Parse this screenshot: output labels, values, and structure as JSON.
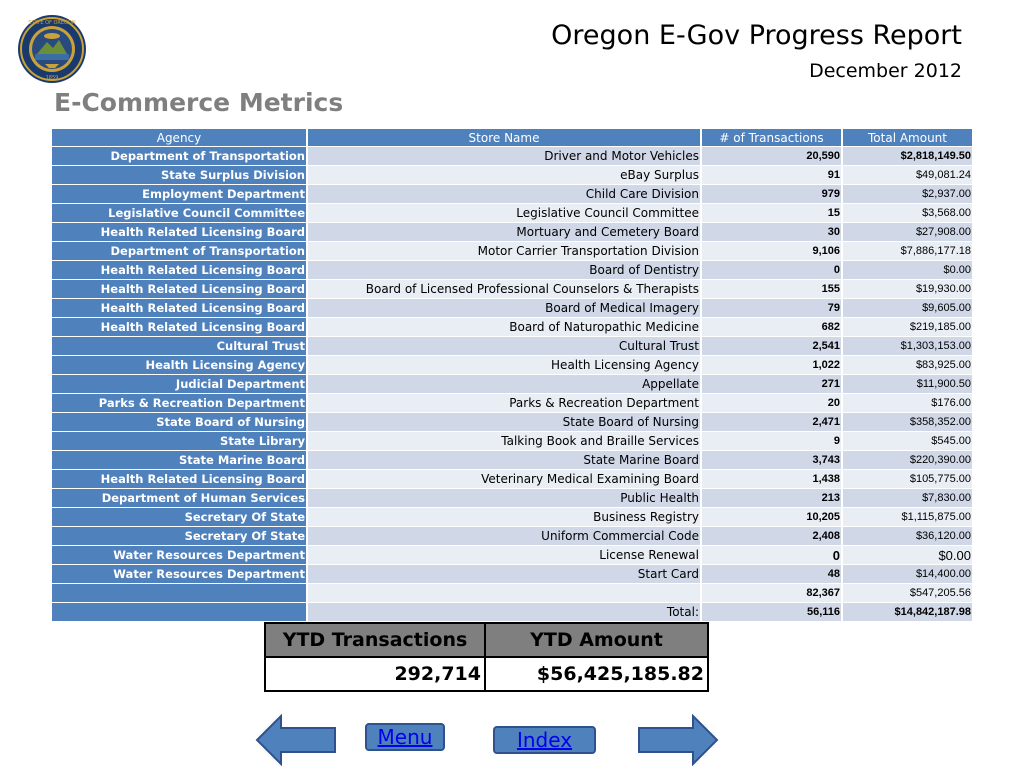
{
  "header": {
    "title": "Oregon E-Gov Progress Report",
    "subtitle": "December 2012",
    "section_title": "E-Commerce Metrics",
    "seal_text": "STATE OF OREGON 1859"
  },
  "table": {
    "columns": [
      "Agency",
      "Store Name",
      "# of Transactions",
      "Total Amount"
    ],
    "rows": [
      {
        "agency": "Department of Transportation",
        "store": "Driver and Motor Vehicles",
        "transactions": "20,590",
        "amount": "$2,818,149.50"
      },
      {
        "agency": "State Surplus Division",
        "store": "eBay Surplus",
        "transactions": "91",
        "amount": "$49,081.24"
      },
      {
        "agency": "Employment Department",
        "store": "Child Care Division",
        "transactions": "979",
        "amount": "$2,937.00"
      },
      {
        "agency": "Legislative Council Committee",
        "store": "Legislative Council Committee",
        "transactions": "15",
        "amount": "$3,568.00"
      },
      {
        "agency": "Health Related Licensing Board",
        "store": "Mortuary and Cemetery Board",
        "transactions": "30",
        "amount": "$27,908.00"
      },
      {
        "agency": "Department of Transportation",
        "store": "Motor Carrier Transportation Division",
        "transactions": "9,106",
        "amount": "$7,886,177.18"
      },
      {
        "agency": "Health Related Licensing Board",
        "store": "Board of Dentistry",
        "transactions": "0",
        "amount": "$0.00"
      },
      {
        "agency": "Health Related Licensing Board",
        "store": "Board of Licensed Professional Counselors & Therapists",
        "transactions": "155",
        "amount": "$19,930.00"
      },
      {
        "agency": "Health Related Licensing Board",
        "store": "Board of Medical Imagery",
        "transactions": "79",
        "amount": "$9,605.00"
      },
      {
        "agency": "Health Related Licensing Board",
        "store": "Board of Naturopathic Medicine",
        "transactions": "682",
        "amount": "$219,185.00"
      },
      {
        "agency": "Cultural Trust",
        "store": "Cultural Trust",
        "transactions": "2,541",
        "amount": "$1,303,153.00"
      },
      {
        "agency": "Health Licensing Agency",
        "store": "Health Licensing Agency",
        "transactions": "1,022",
        "amount": "$83,925.00"
      },
      {
        "agency": "Judicial Department",
        "store": "Appellate",
        "transactions": "271",
        "amount": "$11,900.50"
      },
      {
        "agency": "Parks & Recreation Department",
        "store": "Parks & Recreation Department",
        "transactions": "20",
        "amount": "$176.00"
      },
      {
        "agency": "State Board of Nursing",
        "store": "State Board of Nursing",
        "transactions": "2,471",
        "amount": "$358,352.00"
      },
      {
        "agency": "State Library",
        "store": "Talking Book and Braille Services",
        "transactions": "9",
        "amount": "$545.00"
      },
      {
        "agency": "State Marine Board",
        "store": "State Marine Board",
        "transactions": "3,743",
        "amount": "$220,390.00"
      },
      {
        "agency": "Health Related Licensing Board",
        "store": "Veterinary Medical Examining Board",
        "transactions": "1,438",
        "amount": "$105,775.00"
      },
      {
        "agency": "Department of Human Services",
        "store": "Public Health",
        "transactions": "213",
        "amount": "$7,830.00"
      },
      {
        "agency": "Secretary Of State",
        "store": "Business Registry",
        "transactions": "10,205",
        "amount": "$1,115,875.00"
      },
      {
        "agency": "Secretary Of State",
        "store": "Uniform Commercial Code",
        "transactions": "2,408",
        "amount": "$36,120.00"
      },
      {
        "agency": "Water Resources Department",
        "store": "License Renewal",
        "transactions": "0",
        "amount": "$0.00"
      },
      {
        "agency": "Water Resources Department",
        "store": "Start Card",
        "transactions": "48",
        "amount": "$14,400.00"
      },
      {
        "agency": "",
        "store": "",
        "transactions": "82,367",
        "amount": "$547,205.56"
      },
      {
        "agency": "",
        "store": "Total:",
        "transactions": "56,116",
        "amount": "$14,842,187.98"
      }
    ]
  },
  "ytd": {
    "transactions_label": "YTD Transactions",
    "amount_label": "YTD Amount",
    "transactions_value": "292,714",
    "amount_value": "$56,425,185.82"
  },
  "nav": {
    "menu_label": "Menu",
    "index_label": "Index",
    "prev_icon": "left-arrow-icon",
    "next_icon": "right-arrow-icon"
  },
  "colors": {
    "header_blue": "#4f81bd",
    "row_light": "#e9edf4",
    "row_dark": "#d0d8e8",
    "section_gray": "#7f7f7f"
  }
}
